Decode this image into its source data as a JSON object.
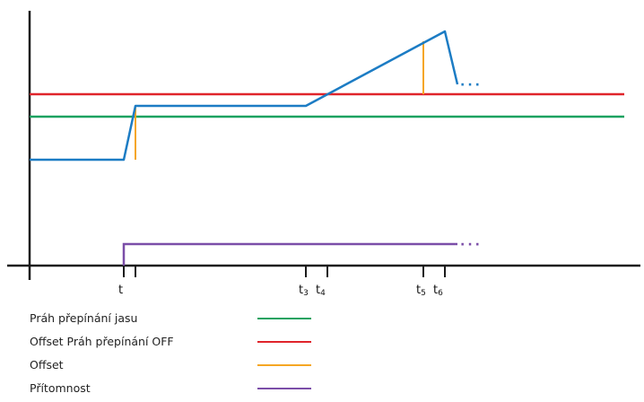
{
  "axis_labels": {
    "t": "t",
    "t3": {
      "base": "t",
      "sub": "3"
    },
    "t4": {
      "base": "t",
      "sub": "4"
    },
    "t5": {
      "base": "t",
      "sub": "5"
    },
    "t6": {
      "base": "t",
      "sub": "6"
    }
  },
  "continuation": "···",
  "legend": {
    "items": [
      {
        "label": "Práh přepínání jasu",
        "color": "#1aa260"
      },
      {
        "label": "Offset Práh přepínání OFF",
        "color": "#e0242b"
      },
      {
        "label": "Offset",
        "color": "#f5a623"
      },
      {
        "label": "Přítomnost",
        "color": "#7b4ea8"
      }
    ]
  },
  "colors": {
    "signal": "#1c7cc4",
    "axis": "#1a1a1a"
  }
}
